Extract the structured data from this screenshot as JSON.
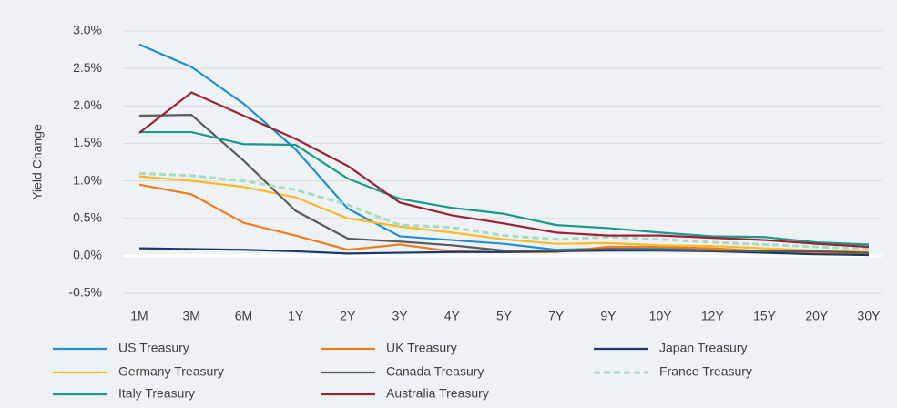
{
  "chart_data": {
    "type": "line",
    "y_label": "Yield Change",
    "categories": [
      "1M",
      "3M",
      "6M",
      "1Y",
      "2Y",
      "3Y",
      "4Y",
      "5Y",
      "7Y",
      "9Y",
      "10Y",
      "12Y",
      "15Y",
      "20Y",
      "30Y"
    ],
    "ylim": [
      -0.5,
      3.0
    ],
    "yticks": [
      {
        "value": -0.5,
        "label": "-0.5%"
      },
      {
        "value": 0,
        "label": "0.0%"
      },
      {
        "value": 0.5,
        "label": "0.5%"
      },
      {
        "value": 1.0,
        "label": "1.0%"
      },
      {
        "value": 1.5,
        "label": "1.5%"
      },
      {
        "value": 2.0,
        "label": "2.0%"
      },
      {
        "value": 2.5,
        "label": "2.5%"
      },
      {
        "value": 3.0,
        "label": "3.0%"
      }
    ],
    "grid": true,
    "legend": "bottom",
    "series": [
      {
        "name": "US Treasury",
        "color": "#1f8fd1",
        "values": [
          2.82,
          2.52,
          2.03,
          1.42,
          0.63,
          0.26,
          0.21,
          0.16,
          0.08,
          0.1,
          0.1,
          0.08,
          0.05,
          0.03,
          0.01
        ]
      },
      {
        "name": "UK Treasury",
        "color": "#f07c1e",
        "values": [
          0.95,
          0.82,
          0.44,
          0.27,
          0.08,
          0.15,
          0.06,
          0.05,
          0.05,
          0.12,
          0.12,
          0.1,
          0.06,
          0.04,
          0.03
        ]
      },
      {
        "name": "Japan Treasury",
        "color": "#1b3a6b",
        "values": [
          0.1,
          0.09,
          0.08,
          0.06,
          0.03,
          0.04,
          0.05,
          0.05,
          0.06,
          0.07,
          0.07,
          0.06,
          0.04,
          0.02,
          0.01
        ]
      },
      {
        "name": "Germany Treasury",
        "color": "#fbb829",
        "values": [
          1.06,
          1.0,
          0.92,
          0.78,
          0.5,
          0.39,
          0.31,
          0.22,
          0.16,
          0.17,
          0.14,
          0.13,
          0.1,
          0.07,
          0.05
        ]
      },
      {
        "name": "Canada Treasury",
        "color": "#5a5a5a",
        "values": [
          1.87,
          1.88,
          1.27,
          0.6,
          0.23,
          0.19,
          0.14,
          0.07,
          0.07,
          0.09,
          0.08,
          0.07,
          0.06,
          0.06,
          0.04
        ]
      },
      {
        "name": "France Treasury",
        "color": "#a6dcc0",
        "dash": true,
        "values": [
          1.1,
          1.07,
          1.0,
          0.88,
          0.68,
          0.41,
          0.38,
          0.27,
          0.22,
          0.25,
          0.22,
          0.18,
          0.15,
          0.12,
          0.09
        ]
      },
      {
        "name": "Italy Treasury",
        "color": "#1a9a8a",
        "values": [
          1.65,
          1.65,
          1.49,
          1.48,
          1.03,
          0.76,
          0.64,
          0.56,
          0.41,
          0.37,
          0.31,
          0.26,
          0.25,
          0.18,
          0.15
        ]
      },
      {
        "name": "Australia Treasury",
        "color": "#9b2232",
        "values": [
          1.64,
          2.18,
          1.87,
          1.56,
          1.2,
          0.71,
          0.54,
          0.43,
          0.31,
          0.27,
          0.27,
          0.24,
          0.21,
          0.16,
          0.12
        ]
      }
    ]
  }
}
